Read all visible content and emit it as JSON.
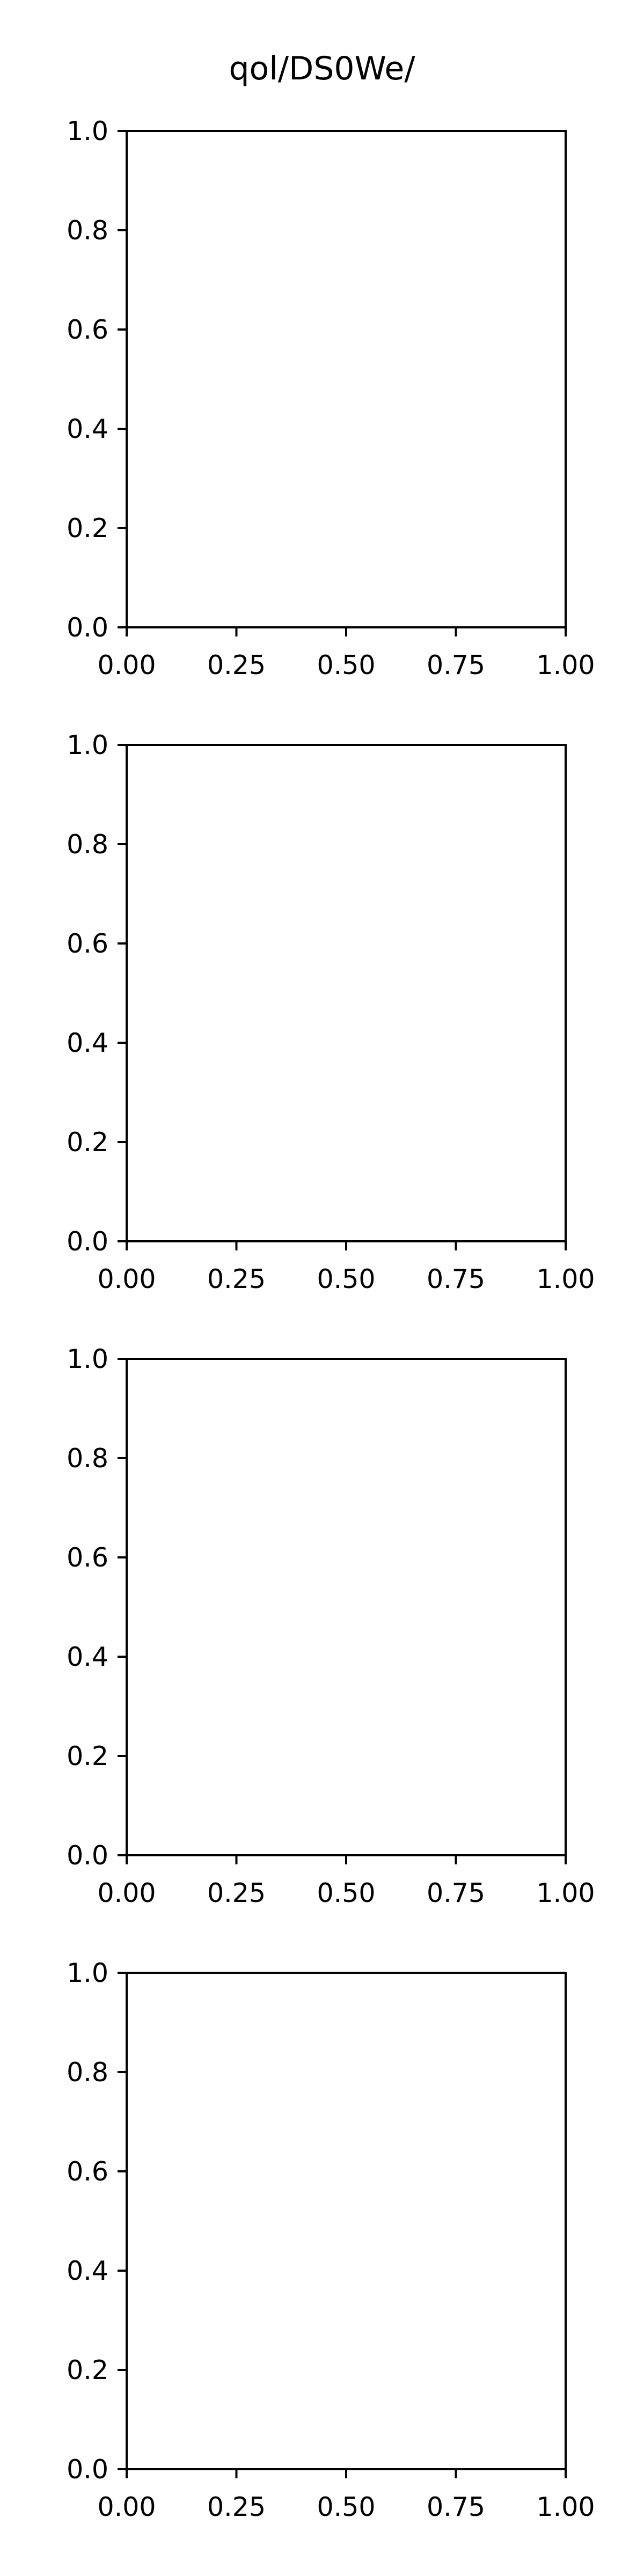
{
  "figure": {
    "title": "qol/DS0We/"
  },
  "chart_data": [
    {
      "type": "line",
      "title": "",
      "xlabel": "",
      "ylabel": "",
      "xlim": [
        0,
        1
      ],
      "ylim": [
        0,
        1
      ],
      "x_ticks": [
        "0.00",
        "0.25",
        "0.50",
        "0.75",
        "1.00"
      ],
      "y_ticks": [
        "0.0",
        "0.2",
        "0.4",
        "0.6",
        "0.8",
        "1.0"
      ],
      "grid": false,
      "series": []
    },
    {
      "type": "line",
      "title": "",
      "xlabel": "",
      "ylabel": "",
      "xlim": [
        0,
        1
      ],
      "ylim": [
        0,
        1
      ],
      "x_ticks": [
        "0.00",
        "0.25",
        "0.50",
        "0.75",
        "1.00"
      ],
      "y_ticks": [
        "0.0",
        "0.2",
        "0.4",
        "0.6",
        "0.8",
        "1.0"
      ],
      "grid": false,
      "series": []
    },
    {
      "type": "line",
      "title": "",
      "xlabel": "",
      "ylabel": "",
      "xlim": [
        0,
        1
      ],
      "ylim": [
        0,
        1
      ],
      "x_ticks": [
        "0.00",
        "0.25",
        "0.50",
        "0.75",
        "1.00"
      ],
      "y_ticks": [
        "0.0",
        "0.2",
        "0.4",
        "0.6",
        "0.8",
        "1.0"
      ],
      "grid": false,
      "series": []
    },
    {
      "type": "line",
      "title": "",
      "xlabel": "",
      "ylabel": "",
      "xlim": [
        0,
        1
      ],
      "ylim": [
        0,
        1
      ],
      "x_ticks": [
        "0.00",
        "0.25",
        "0.50",
        "0.75",
        "1.00"
      ],
      "y_ticks": [
        "0.0",
        "0.2",
        "0.4",
        "0.6",
        "0.8",
        "1.0"
      ],
      "grid": false,
      "series": []
    }
  ]
}
